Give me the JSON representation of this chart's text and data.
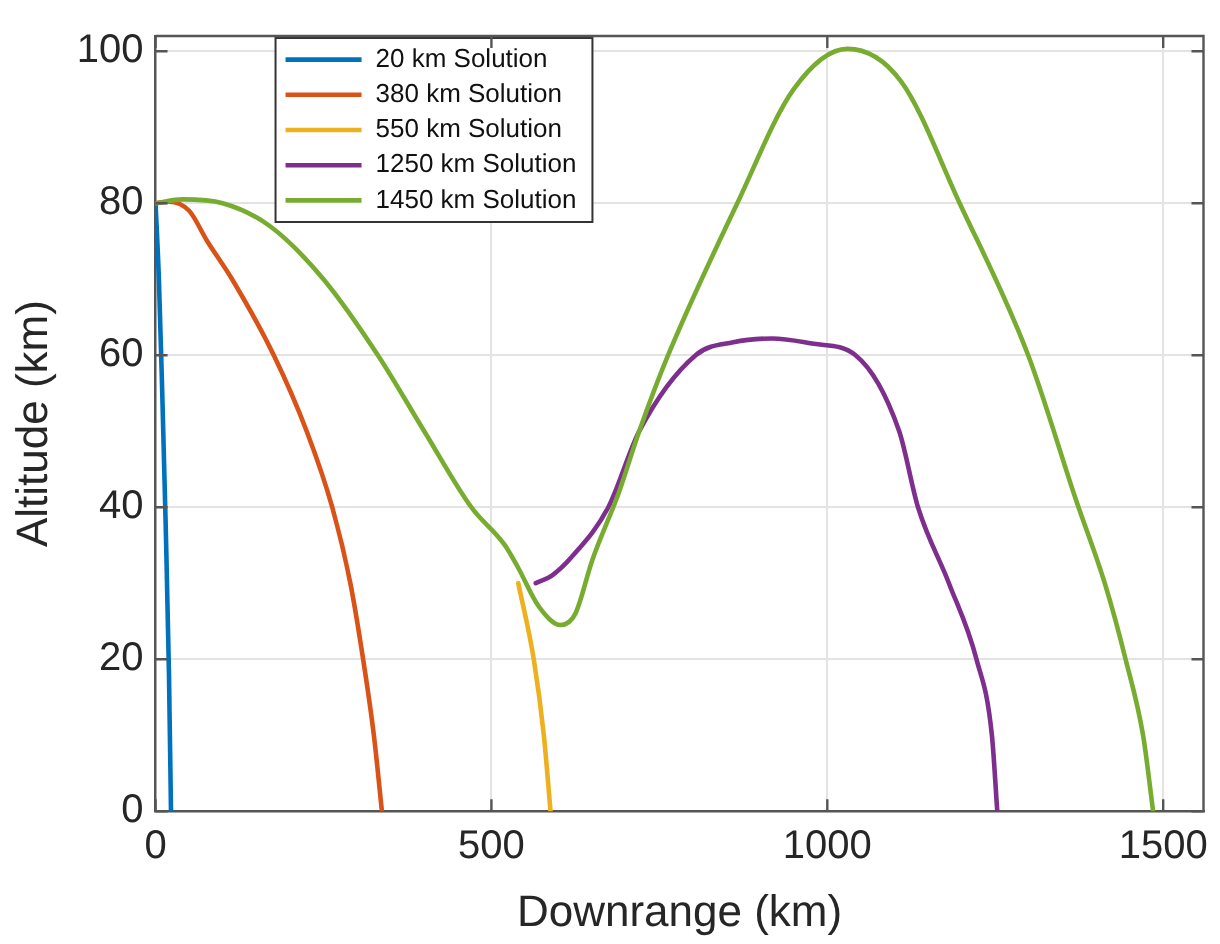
{
  "chart_data": {
    "type": "line",
    "xlabel": "Downrange (km)",
    "ylabel": "Altitude (km)",
    "xlim": [
      0,
      1560
    ],
    "ylim": [
      0,
      102
    ],
    "xticks": [
      0,
      500,
      1000,
      1500
    ],
    "yticks": [
      0,
      20,
      40,
      60,
      80,
      100
    ],
    "grid": true,
    "legend": "top left",
    "marker": "none",
    "line_style": "solid",
    "series": [
      {
        "name": "20 km Solution",
        "color": "#0072bd",
        "x": [
          0,
          5,
          10,
          15,
          20,
          23
        ],
        "values": [
          80,
          70,
          55,
          38,
          18,
          0
        ]
      },
      {
        "name": "380 km Solution",
        "color": "#d95319",
        "x": [
          0,
          20,
          50,
          77,
          114,
          176,
          225,
          263,
          290,
          309,
          325,
          337
        ],
        "values": [
          80,
          80.2,
          79,
          75,
          70,
          60,
          50,
          40,
          30,
          20,
          10,
          0
        ]
      },
      {
        "name": "550 km Solution",
        "color": "#edb120",
        "x": [
          540,
          563,
          578,
          588
        ],
        "values": [
          30,
          20,
          10,
          0
        ]
      },
      {
        "name": "1250 km Solution",
        "color": "#7e2f8e",
        "x": [
          566,
          590,
          620,
          674,
          720,
          804,
          860,
          918,
          980,
          1042,
          1107,
          1135,
          1181,
          1222,
          1245,
          1253
        ],
        "values": [
          30,
          31,
          33.5,
          40,
          50,
          60,
          61.7,
          62.2,
          61.5,
          60,
          50,
          40,
          30,
          20,
          10,
          0
        ]
      },
      {
        "name": "1450 km Solution",
        "color": "#77ac30",
        "x": [
          0,
          40,
          100,
          170,
          250,
          331,
          400,
          470,
          520,
          540,
          570,
          603,
          625,
          650,
          690,
          720,
          763,
          866,
          950,
          1030,
          1110,
          1197,
          1299,
          1370,
          1413,
          1444,
          1470,
          1485
        ],
        "values": [
          80,
          80.5,
          80,
          77,
          70,
          60,
          50,
          40,
          35,
          32,
          27,
          24.5,
          26,
          33,
          42,
          50,
          60,
          80,
          95,
          100.3,
          96,
          80,
          60,
          41,
          30,
          20,
          10,
          0
        ]
      }
    ]
  }
}
